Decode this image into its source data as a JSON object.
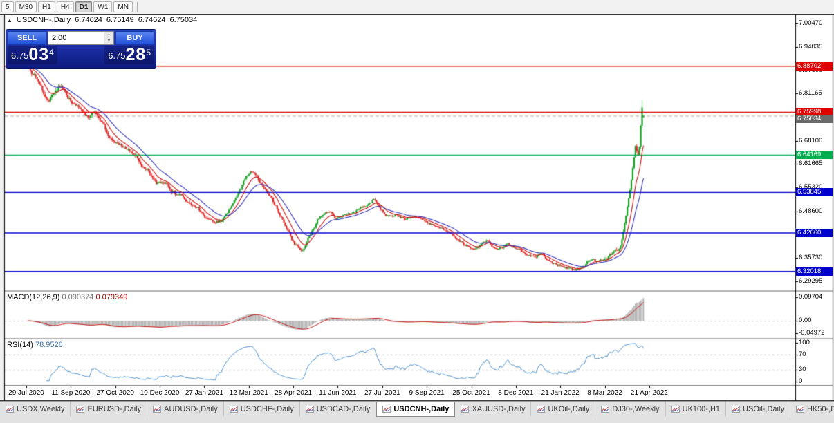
{
  "toolbar": {
    "timeframes": [
      {
        "label": "5",
        "active": false
      },
      {
        "label": "M30",
        "active": false
      },
      {
        "label": "H1",
        "active": false
      },
      {
        "label": "H4",
        "active": false
      },
      {
        "label": "D1",
        "active": true
      },
      {
        "label": "W1",
        "active": false
      },
      {
        "label": "MN",
        "active": false
      }
    ]
  },
  "info_line": {
    "collapse_icon": "▲",
    "symbol": "USDCNH-,Daily",
    "open": "6.74624",
    "high": "6.75149",
    "low": "6.74624",
    "close": "6.75034"
  },
  "trade_panel": {
    "sell_label": "SELL",
    "buy_label": "BUY",
    "volume": "2.00",
    "sell_price": {
      "big_prefix": "6.75",
      "big": "03",
      "sup": "4"
    },
    "buy_price": {
      "big_prefix": "6.75",
      "big": "28",
      "sup": "5"
    }
  },
  "price_axis": {
    "labels": [
      {
        "text": "7.00470",
        "value": 7.0047
      },
      {
        "text": "6.94035",
        "value": 6.94035
      },
      {
        "text": "6.87600",
        "value": 6.876
      },
      {
        "text": "6.81165",
        "value": 6.81165
      },
      {
        "text": "6.68100",
        "value": 6.681
      },
      {
        "text": "6.61665",
        "value": 6.61665
      },
      {
        "text": "6.55320",
        "value": 6.5532
      },
      {
        "text": "6.48600",
        "value": 6.486
      },
      {
        "text": "6.35730",
        "value": 6.3573
      },
      {
        "text": "6.29295",
        "value": 6.29295
      }
    ]
  },
  "macd_panel": {
    "title": "MACD(12,26,9)",
    "value_main": "0.090374",
    "value_signal": "0.079349",
    "axis": [
      {
        "text": "0.09704",
        "value": 0.09704
      },
      {
        "text": "0.00",
        "value": 0
      },
      {
        "text": "-0.04972",
        "value": -0.04972
      }
    ]
  },
  "rsi_panel": {
    "title": "RSI(14)",
    "value": "78.9526",
    "axis": [
      {
        "text": "100",
        "value": 100
      },
      {
        "text": "70",
        "value": 70
      },
      {
        "text": "30",
        "value": 30
      },
      {
        "text": "0",
        "value": 0
      }
    ]
  },
  "x_axis": {
    "dates": [
      "29 Jul 2020",
      "11 Sep 2020",
      "27 Oct 2020",
      "10 Dec 2020",
      "27 Jan 2021",
      "12 Mar 2021",
      "28 Apr 2021",
      "11 Jun 2021",
      "27 Jul 2021",
      "9 Sep 2021",
      "25 Oct 2021",
      "8 Dec 2021",
      "21 Jan 2022",
      "8 Mar 2022",
      "21 Apr 2022"
    ]
  },
  "tabs": [
    {
      "label": "USDX,Weekly",
      "active": false
    },
    {
      "label": "EURUSD-,Daily",
      "active": false
    },
    {
      "label": "AUDUSD-,Daily",
      "active": false
    },
    {
      "label": "USDCHF-,Daily",
      "active": false
    },
    {
      "label": "USDCAD-,Daily",
      "active": false
    },
    {
      "label": "USDCNH-,Daily",
      "active": true
    },
    {
      "label": "XAUUSD-,Daily",
      "active": false
    },
    {
      "label": "UKOil-,Daily",
      "active": false
    },
    {
      "label": "DJ30-,Weekly",
      "active": false
    },
    {
      "label": "UK100-,H1",
      "active": false
    },
    {
      "label": "USOil-,Daily",
      "active": false
    },
    {
      "label": "HK50-,Daily",
      "active": false
    }
  ],
  "chart_data": {
    "type": "candlestick",
    "symbol": "USDCNH",
    "timeframe": "Daily",
    "visible_range": {
      "start": "29 Jul 2020",
      "end": "21 Apr 2022"
    },
    "price_axis_range": [
      6.27,
      7.03
    ],
    "candles_count": 460,
    "seed": 20220506,
    "up_color": "#18a024",
    "down_color": "#e02424",
    "last_candle": {
      "open": 6.74624,
      "high": 6.75149,
      "low": 6.74624,
      "close": 6.75034
    },
    "spike_high": 6.795,
    "bid": {
      "text": "6.75034",
      "value": 6.75034,
      "color": "#6b6b6b"
    },
    "horizontal_levels": [
      {
        "text": "6.88702",
        "value": 6.88702,
        "color": "#e00000"
      },
      {
        "text": "6.75998",
        "value": 6.75998,
        "color": "#e00000"
      },
      {
        "text": "6.64169",
        "value": 6.64169,
        "color": "#00b050"
      },
      {
        "text": "6.53845",
        "value": 6.53845,
        "color": "#0000cd"
      },
      {
        "text": "6.42660",
        "value": 6.4266,
        "color": "#0000cd"
      },
      {
        "text": "6.32018",
        "value": 6.32018,
        "color": "#0000cd"
      }
    ],
    "moving_averages": [
      {
        "method": "ema",
        "period": 10,
        "color": "#cc1111"
      },
      {
        "method": "ema",
        "period": 22,
        "color": "#3333bb"
      }
    ],
    "macd": {
      "fast": 12,
      "slow": 26,
      "signal": 9,
      "histogram_color": "#b4b4b4",
      "signal_color": "#cc1111",
      "current_main": 0.090374,
      "current_signal": 0.079349
    },
    "rsi": {
      "period": 14,
      "color": "#4b8fd5",
      "current": 78.9526,
      "guide_levels": [
        70,
        30
      ]
    },
    "waypoints": [
      [
        0,
        6.893
      ],
      [
        5,
        6.868
      ],
      [
        10,
        6.838
      ],
      [
        15,
        6.8
      ],
      [
        20,
        6.81
      ],
      [
        25,
        6.833
      ],
      [
        30,
        6.795
      ],
      [
        35,
        6.775
      ],
      [
        40,
        6.758
      ],
      [
        45,
        6.742
      ],
      [
        50,
        6.756
      ],
      [
        55,
        6.726
      ],
      [
        60,
        6.7
      ],
      [
        65,
        6.68
      ],
      [
        70,
        6.664
      ],
      [
        75,
        6.65
      ],
      [
        80,
        6.63
      ],
      [
        85,
        6.606
      ],
      [
        90,
        6.59
      ],
      [
        95,
        6.578
      ],
      [
        100,
        6.57
      ],
      [
        105,
        6.556
      ],
      [
        110,
        6.54
      ],
      [
        115,
        6.53
      ],
      [
        120,
        6.51
      ],
      [
        125,
        6.492
      ],
      [
        130,
        6.48
      ],
      [
        135,
        6.465
      ],
      [
        140,
        6.45
      ],
      [
        145,
        6.458
      ],
      [
        150,
        6.488
      ],
      [
        155,
        6.53
      ],
      [
        160,
        6.565
      ],
      [
        163,
        6.588
      ],
      [
        166,
        6.598
      ],
      [
        170,
        6.578
      ],
      [
        175,
        6.556
      ],
      [
        180,
        6.53
      ],
      [
        185,
        6.505
      ],
      [
        190,
        6.462
      ],
      [
        195,
        6.42
      ],
      [
        200,
        6.39
      ],
      [
        205,
        6.375
      ],
      [
        208,
        6.39
      ],
      [
        212,
        6.43
      ],
      [
        216,
        6.462
      ],
      [
        220,
        6.478
      ],
      [
        225,
        6.488
      ],
      [
        230,
        6.47
      ],
      [
        235,
        6.478
      ],
      [
        240,
        6.486
      ],
      [
        245,
        6.492
      ],
      [
        250,
        6.5
      ],
      [
        255,
        6.51
      ],
      [
        258,
        6.515
      ],
      [
        262,
        6.495
      ],
      [
        266,
        6.478
      ],
      [
        270,
        6.472
      ],
      [
        274,
        6.48
      ],
      [
        278,
        6.47
      ],
      [
        282,
        6.463
      ],
      [
        286,
        6.468
      ],
      [
        290,
        6.474
      ],
      [
        294,
        6.46
      ],
      [
        298,
        6.452
      ],
      [
        302,
        6.448
      ],
      [
        306,
        6.44
      ],
      [
        310,
        6.432
      ],
      [
        314,
        6.42
      ],
      [
        318,
        6.412
      ],
      [
        322,
        6.404
      ],
      [
        326,
        6.396
      ],
      [
        330,
        6.39
      ],
      [
        334,
        6.385
      ],
      [
        338,
        6.396
      ],
      [
        342,
        6.402
      ],
      [
        346,
        6.388
      ],
      [
        350,
        6.38
      ],
      [
        354,
        6.384
      ],
      [
        358,
        6.394
      ],
      [
        362,
        6.386
      ],
      [
        366,
        6.376
      ],
      [
        370,
        6.368
      ],
      [
        374,
        6.36
      ],
      [
        378,
        6.358
      ],
      [
        382,
        6.364
      ],
      [
        386,
        6.354
      ],
      [
        390,
        6.344
      ],
      [
        394,
        6.337
      ],
      [
        398,
        6.332
      ],
      [
        402,
        6.33
      ],
      [
        406,
        6.326
      ],
      [
        410,
        6.322
      ],
      [
        414,
        6.334
      ],
      [
        418,
        6.35
      ],
      [
        422,
        6.354
      ],
      [
        426,
        6.346
      ],
      [
        430,
        6.356
      ],
      [
        434,
        6.366
      ],
      [
        438,
        6.374
      ],
      [
        441,
        6.38
      ],
      [
        443,
        6.405
      ],
      [
        445,
        6.445
      ],
      [
        447,
        6.492
      ],
      [
        449,
        6.545
      ],
      [
        451,
        6.61
      ],
      [
        453,
        6.67
      ],
      [
        455,
        6.635
      ],
      [
        456,
        6.662
      ],
      [
        457,
        6.715
      ],
      [
        458,
        6.772
      ],
      [
        459,
        6.75
      ]
    ]
  }
}
